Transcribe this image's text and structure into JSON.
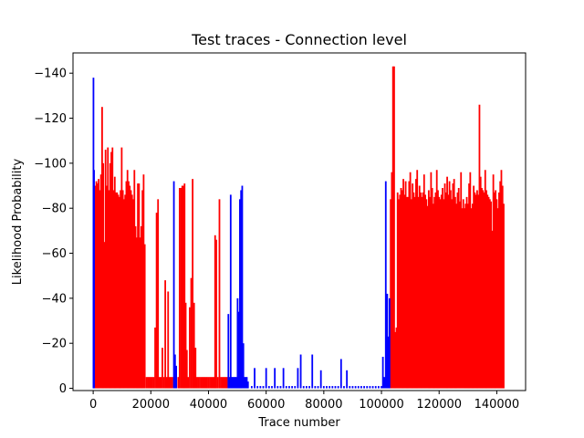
{
  "chart_data": {
    "type": "bar",
    "title": "Test traces - Connection level",
    "xlabel": "Trace number",
    "ylabel": "Likelihood Probability",
    "xlim": [
      -7000,
      150000
    ],
    "ylim": [
      1,
      -149
    ],
    "y_inverted": true,
    "grid": false,
    "legend": "none",
    "x_ticks": [
      {
        "value": 0,
        "label": "0"
      },
      {
        "value": 20000,
        "label": "20000"
      },
      {
        "value": 40000,
        "label": "40000"
      },
      {
        "value": 60000,
        "label": "60000"
      },
      {
        "value": 80000,
        "label": "80000"
      },
      {
        "value": 100000,
        "label": "100000"
      },
      {
        "value": 120000,
        "label": "120000"
      },
      {
        "value": 140000,
        "label": "140000"
      }
    ],
    "y_ticks": [
      {
        "value": 0,
        "label": "0"
      },
      {
        "value": -20,
        "label": "−20"
      },
      {
        "value": -40,
        "label": "−40"
      },
      {
        "value": -60,
        "label": "−60"
      },
      {
        "value": -80,
        "label": "−80"
      },
      {
        "value": -100,
        "label": "−100"
      },
      {
        "value": -120,
        "label": "−120"
      },
      {
        "value": -140,
        "label": "−140"
      }
    ],
    "series": [
      {
        "color": "#ff0000",
        "points": [
          [
            700,
            -90
          ],
          [
            1100,
            -92
          ],
          [
            1500,
            -91
          ],
          [
            1900,
            -93
          ],
          [
            2300,
            -88
          ],
          [
            2700,
            -95
          ],
          [
            3100,
            -125
          ],
          [
            3500,
            -100
          ],
          [
            3900,
            -65
          ],
          [
            4300,
            -106
          ],
          [
            4700,
            -90
          ],
          [
            5100,
            -107
          ],
          [
            5500,
            -88
          ],
          [
            5900,
            -100
          ],
          [
            6300,
            -105
          ],
          [
            6700,
            -107
          ],
          [
            7100,
            -88
          ],
          [
            7500,
            -94
          ],
          [
            7900,
            -87
          ],
          [
            8300,
            -87
          ],
          [
            8700,
            -86
          ],
          [
            9100,
            -85
          ],
          [
            9500,
            -88
          ],
          [
            9900,
            -107
          ],
          [
            10300,
            -88
          ],
          [
            10700,
            -84
          ],
          [
            11100,
            -86
          ],
          [
            11500,
            -92
          ],
          [
            11900,
            -97
          ],
          [
            12300,
            -92
          ],
          [
            12700,
            -90
          ],
          [
            13100,
            -88
          ],
          [
            13500,
            -86
          ],
          [
            13900,
            -84
          ],
          [
            14300,
            -97
          ],
          [
            14700,
            -72
          ],
          [
            15100,
            -67
          ],
          [
            15500,
            -91
          ],
          [
            15900,
            -91
          ],
          [
            16300,
            -67
          ],
          [
            16700,
            -72
          ],
          [
            17100,
            -88
          ],
          [
            17500,
            -95
          ],
          [
            17900,
            -64
          ],
          [
            18500,
            -5
          ],
          [
            19000,
            -5
          ],
          [
            19500,
            -5
          ],
          [
            20000,
            -5
          ],
          [
            20500,
            -5
          ],
          [
            21000,
            -5
          ],
          [
            21500,
            -27
          ],
          [
            22000,
            -78
          ],
          [
            22500,
            -84
          ],
          [
            23000,
            -5
          ],
          [
            23500,
            -5
          ],
          [
            24000,
            -18
          ],
          [
            24500,
            -5
          ],
          [
            25000,
            -48
          ],
          [
            25500,
            -5
          ],
          [
            26000,
            -43
          ],
          [
            26500,
            -5
          ],
          [
            27000,
            -5
          ],
          [
            27500,
            -5
          ],
          [
            29500,
            -5
          ],
          [
            30000,
            -89
          ],
          [
            30500,
            -89
          ],
          [
            30900,
            -90
          ],
          [
            31300,
            -90
          ],
          [
            31700,
            -91
          ],
          [
            32100,
            -38
          ],
          [
            32500,
            -17
          ],
          [
            33000,
            -5
          ],
          [
            33500,
            -36
          ],
          [
            34000,
            -49
          ],
          [
            34500,
            -93
          ],
          [
            35000,
            -38
          ],
          [
            35500,
            -18
          ],
          [
            36000,
            -5
          ],
          [
            36500,
            -5
          ],
          [
            37000,
            -5
          ],
          [
            37500,
            -5
          ],
          [
            38000,
            -5
          ],
          [
            38500,
            -5
          ],
          [
            39000,
            -5
          ],
          [
            39500,
            -5
          ],
          [
            40000,
            -5
          ],
          [
            40500,
            -5
          ],
          [
            41000,
            -5
          ],
          [
            41500,
            -5
          ],
          [
            42000,
            -5
          ],
          [
            42300,
            -68
          ],
          [
            42700,
            -66
          ],
          [
            43200,
            -5
          ],
          [
            43800,
            -84
          ],
          [
            44300,
            -5
          ],
          [
            44800,
            -5
          ],
          [
            45300,
            -5
          ],
          [
            45800,
            -5
          ],
          [
            46300,
            -5
          ],
          [
            46800,
            -5
          ],
          [
            103200,
            -84
          ],
          [
            103600,
            -96
          ],
          [
            104000,
            -143
          ],
          [
            104400,
            -143
          ],
          [
            104800,
            -25
          ],
          [
            105200,
            -27
          ],
          [
            105600,
            -87
          ],
          [
            106000,
            -84
          ],
          [
            106400,
            -86
          ],
          [
            106800,
            -89
          ],
          [
            107200,
            -88
          ],
          [
            107600,
            -93
          ],
          [
            108000,
            -86
          ],
          [
            108400,
            -92
          ],
          [
            108800,
            -85
          ],
          [
            109200,
            -85
          ],
          [
            109600,
            -92
          ],
          [
            110000,
            -96
          ],
          [
            110400,
            -84
          ],
          [
            110800,
            -91
          ],
          [
            111200,
            -87
          ],
          [
            111600,
            -85
          ],
          [
            112000,
            -93
          ],
          [
            112400,
            -97
          ],
          [
            112800,
            -85
          ],
          [
            113200,
            -90
          ],
          [
            113600,
            -87
          ],
          [
            114000,
            -85
          ],
          [
            114400,
            -87
          ],
          [
            114800,
            -95
          ],
          [
            115200,
            -86
          ],
          [
            115600,
            -84
          ],
          [
            116000,
            -81
          ],
          [
            116400,
            -88
          ],
          [
            116800,
            -85
          ],
          [
            117200,
            -96
          ],
          [
            117600,
            -89
          ],
          [
            118000,
            -82
          ],
          [
            118400,
            -85
          ],
          [
            118800,
            -87
          ],
          [
            119200,
            -97
          ],
          [
            119600,
            -88
          ],
          [
            120000,
            -85
          ],
          [
            120400,
            -84
          ],
          [
            120800,
            -86
          ],
          [
            121200,
            -89
          ],
          [
            121600,
            -84
          ],
          [
            122000,
            -91
          ],
          [
            122400,
            -87
          ],
          [
            122800,
            -94
          ],
          [
            123200,
            -86
          ],
          [
            123600,
            -92
          ],
          [
            124000,
            -88
          ],
          [
            124400,
            -84
          ],
          [
            124800,
            -91
          ],
          [
            125200,
            -93
          ],
          [
            125600,
            -85
          ],
          [
            126000,
            -82
          ],
          [
            126400,
            -87
          ],
          [
            126800,
            -89
          ],
          [
            127200,
            -83
          ],
          [
            127600,
            -96
          ],
          [
            128000,
            -80
          ],
          [
            128400,
            -84
          ],
          [
            128800,
            -80
          ],
          [
            129200,
            -82
          ],
          [
            129600,
            -85
          ],
          [
            130000,
            -82
          ],
          [
            130400,
            -91
          ],
          [
            130800,
            -96
          ],
          [
            131200,
            -80
          ],
          [
            131600,
            -82
          ],
          [
            132000,
            -90
          ],
          [
            132400,
            -87
          ],
          [
            132800,
            -86
          ],
          [
            133200,
            -88
          ],
          [
            133600,
            -86
          ],
          [
            134000,
            -126
          ],
          [
            134400,
            -94
          ],
          [
            134800,
            -89
          ],
          [
            135200,
            -88
          ],
          [
            135600,
            -87
          ],
          [
            136000,
            -97
          ],
          [
            136400,
            -88
          ],
          [
            136800,
            -86
          ],
          [
            137200,
            -85
          ],
          [
            137600,
            -84
          ],
          [
            138000,
            -83
          ],
          [
            138400,
            -70
          ],
          [
            138800,
            -95
          ],
          [
            139200,
            -87
          ],
          [
            139600,
            -88
          ],
          [
            140000,
            -84
          ],
          [
            140400,
            -80
          ],
          [
            140800,
            -87
          ],
          [
            141200,
            -92
          ],
          [
            141600,
            -97
          ],
          [
            142000,
            -90
          ],
          [
            142400,
            -82
          ]
        ]
      },
      {
        "color": "#0000ff",
        "points": [
          [
            100,
            -138
          ],
          [
            300,
            -97
          ],
          [
            28000,
            -92
          ],
          [
            28400,
            -15
          ],
          [
            28800,
            -10
          ],
          [
            46900,
            -33
          ],
          [
            47300,
            -5
          ],
          [
            47700,
            -86
          ],
          [
            48100,
            -5
          ],
          [
            48500,
            -5
          ],
          [
            48900,
            -5
          ],
          [
            49300,
            -5
          ],
          [
            49700,
            -5
          ],
          [
            50100,
            -40
          ],
          [
            50500,
            -34
          ],
          [
            50900,
            -84
          ],
          [
            51300,
            -88
          ],
          [
            51700,
            -90
          ],
          [
            52100,
            -20
          ],
          [
            52500,
            -5
          ],
          [
            52900,
            -5
          ],
          [
            53300,
            -5
          ],
          [
            53700,
            -3
          ],
          [
            55000,
            -1
          ],
          [
            56000,
            -9
          ],
          [
            57000,
            -1
          ],
          [
            58000,
            -1
          ],
          [
            59000,
            -1
          ],
          [
            60000,
            -9
          ],
          [
            61000,
            -1
          ],
          [
            62000,
            -1
          ],
          [
            63000,
            -9
          ],
          [
            64000,
            -1
          ],
          [
            65000,
            -1
          ],
          [
            66000,
            -9
          ],
          [
            67000,
            -1
          ],
          [
            68000,
            -1
          ],
          [
            69000,
            -1
          ],
          [
            70000,
            -1
          ],
          [
            71000,
            -9
          ],
          [
            72000,
            -15
          ],
          [
            73000,
            -1
          ],
          [
            74000,
            -1
          ],
          [
            75000,
            -1
          ],
          [
            76000,
            -15
          ],
          [
            77000,
            -1
          ],
          [
            78000,
            -1
          ],
          [
            79000,
            -8
          ],
          [
            80000,
            -1
          ],
          [
            81000,
            -1
          ],
          [
            82000,
            -1
          ],
          [
            83000,
            -1
          ],
          [
            84000,
            -1
          ],
          [
            85000,
            -1
          ],
          [
            86000,
            -13
          ],
          [
            87000,
            -1
          ],
          [
            88000,
            -8
          ],
          [
            89000,
            -1
          ],
          [
            90000,
            -1
          ],
          [
            91000,
            -1
          ],
          [
            92000,
            -1
          ],
          [
            93000,
            -1
          ],
          [
            94000,
            -1
          ],
          [
            95000,
            -1
          ],
          [
            96000,
            -1
          ],
          [
            97000,
            -1
          ],
          [
            98000,
            -1
          ],
          [
            99000,
            -1
          ],
          [
            100000,
            -1
          ],
          [
            100500,
            -14
          ],
          [
            101000,
            -5
          ],
          [
            101500,
            -92
          ],
          [
            102000,
            -42
          ],
          [
            102400,
            -23
          ],
          [
            102800,
            -40
          ]
        ]
      }
    ]
  }
}
